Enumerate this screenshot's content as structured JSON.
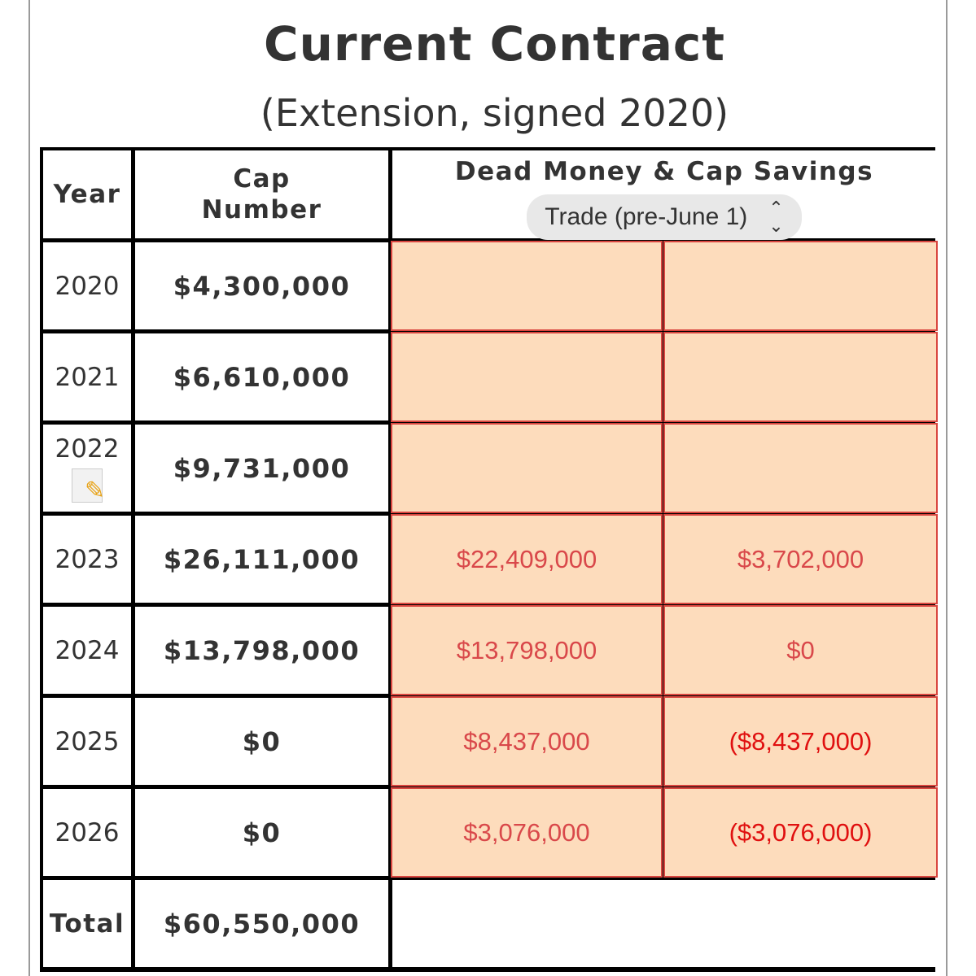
{
  "title": "Current Contract",
  "subtitle": "(Extension, signed 2020)",
  "table": {
    "headers": {
      "year": "Year",
      "cap_number": "Cap Number",
      "dead_money": "Dead Money & Cap Savings"
    },
    "scenario_select": {
      "value": "Trade (pre-June 1)",
      "icon": "up-down-chevron-icon"
    },
    "rows": [
      {
        "year": "2020",
        "cap": "$4,300,000",
        "dead": "",
        "savings": ""
      },
      {
        "year": "2021",
        "cap": "$6,610,000",
        "dead": "",
        "savings": ""
      },
      {
        "year": "2022",
        "cap": "$9,731,000",
        "dead": "",
        "savings": "",
        "icon": "memo-pencil-icon"
      },
      {
        "year": "2023",
        "cap": "$26,111,000",
        "dead": "$22,409,000",
        "savings": "$3,702,000"
      },
      {
        "year": "2024",
        "cap": "$13,798,000",
        "dead": "$13,798,000",
        "savings": "$0"
      },
      {
        "year": "2025",
        "cap": "$0",
        "dead": "$8,437,000",
        "savings": "($8,437,000)"
      },
      {
        "year": "2026",
        "cap": "$0",
        "dead": "$3,076,000",
        "savings": "($3,076,000)"
      }
    ],
    "total": {
      "label": "Total",
      "cap": "$60,550,000"
    }
  },
  "colors": {
    "highlight_bg": "#fddcbc",
    "highlight_border": "#d9463f",
    "dead_text": "#d9484a",
    "negative_text": "#e01010"
  }
}
